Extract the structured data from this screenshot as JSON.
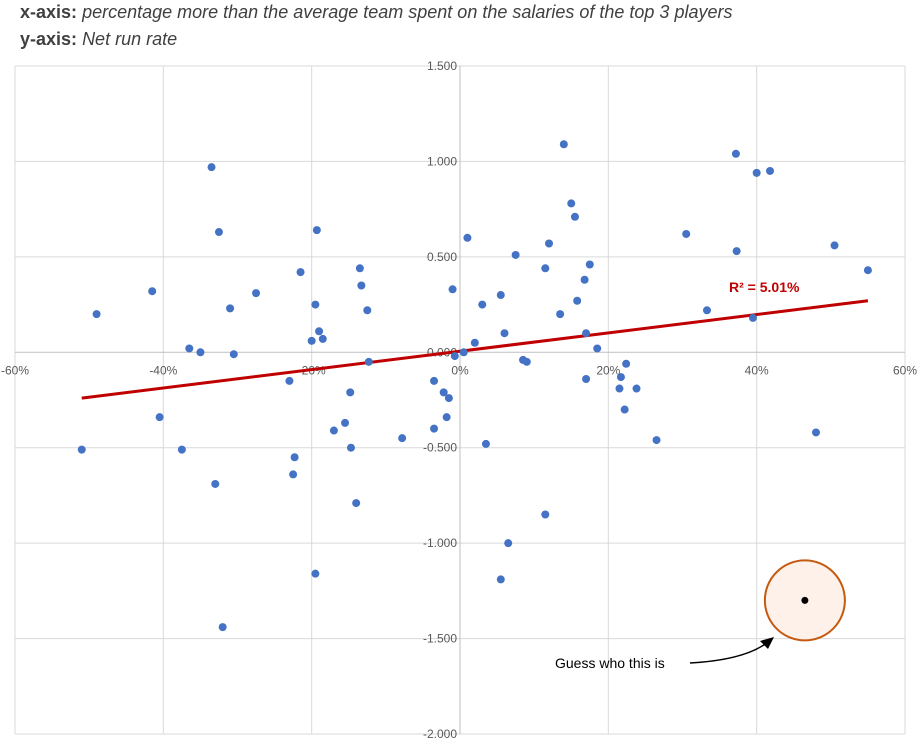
{
  "header": {
    "x_label_key": "x-axis:",
    "x_label_text": "percentage more than the average team spent on the salaries of the top 3 players",
    "y_label_key": "y-axis:",
    "y_label_text": "Net run rate"
  },
  "chart_data": {
    "type": "scatter",
    "title": "",
    "xlabel": "percentage more than the average team spent on the salaries of the top 3 players",
    "ylabel": "Net run rate",
    "xlim": [
      -60,
      60
    ],
    "ylim": [
      -2.0,
      1.5
    ],
    "x_ticks": [
      "-60%",
      "-40%",
      "-20%",
      "0%",
      "20%",
      "40%",
      "60%"
    ],
    "y_ticks": [
      "1.500",
      "1.000",
      "0.500",
      "0.000",
      "-0.500",
      "-1.000",
      "-1.500",
      "-2.000"
    ],
    "x_tick_values": [
      -60,
      -40,
      -20,
      0,
      20,
      40,
      60
    ],
    "y_tick_values": [
      1.5,
      1.0,
      0.5,
      0.0,
      -0.5,
      -1.0,
      -1.5,
      -2.0
    ],
    "grid": true,
    "point_color": "#4472c4",
    "trendline": {
      "x": [
        -51,
        55
      ],
      "y": [
        -0.24,
        0.27
      ],
      "color": "#c00000",
      "label": "R² = 5.01%"
    },
    "highlight": {
      "x": 46.5,
      "y": -1.3,
      "ring_color": "#c55a11",
      "fill_color": "#fdf1e9",
      "label": "Guess who this is"
    },
    "points": [
      [
        -51,
        -0.51
      ],
      [
        -49,
        0.2
      ],
      [
        -41.5,
        0.32
      ],
      [
        -40.5,
        -0.34
      ],
      [
        -37.5,
        -0.51
      ],
      [
        -36.5,
        0.02
      ],
      [
        -35,
        0.0
      ],
      [
        -33.5,
        0.97
      ],
      [
        -33,
        -0.69
      ],
      [
        -32.5,
        0.63
      ],
      [
        -32,
        -1.44
      ],
      [
        -31,
        0.23
      ],
      [
        -30.5,
        -0.01
      ],
      [
        -27.5,
        0.31
      ],
      [
        -23,
        -0.15
      ],
      [
        -22.5,
        -0.64
      ],
      [
        -22.3,
        -0.55
      ],
      [
        -21.5,
        0.42
      ],
      [
        -20,
        0.06
      ],
      [
        -19.5,
        -1.16
      ],
      [
        -19.5,
        0.25
      ],
      [
        -19.3,
        0.64
      ],
      [
        -19,
        0.11
      ],
      [
        -18.5,
        0.07
      ],
      [
        -17,
        -0.41
      ],
      [
        -15.5,
        -0.37
      ],
      [
        -14.8,
        -0.21
      ],
      [
        -14.7,
        -0.5
      ],
      [
        -14,
        -0.79
      ],
      [
        -13.5,
        0.44
      ],
      [
        -13.3,
        0.35
      ],
      [
        -12.5,
        0.22
      ],
      [
        -12.3,
        -0.05
      ],
      [
        -7.8,
        -0.45
      ],
      [
        -1,
        0.33
      ],
      [
        -0.7,
        -0.02
      ],
      [
        -3.5,
        -0.15
      ],
      [
        -3.5,
        -0.4
      ],
      [
        -2.2,
        -0.21
      ],
      [
        -1.8,
        -0.34
      ],
      [
        -1.5,
        -0.24
      ],
      [
        0.5,
        0.0
      ],
      [
        1.0,
        0.6
      ],
      [
        2.0,
        0.05
      ],
      [
        3.0,
        0.25
      ],
      [
        3.5,
        -0.48
      ],
      [
        5.5,
        0.3
      ],
      [
        5.5,
        -1.19
      ],
      [
        6,
        0.1
      ],
      [
        6.5,
        -1.0
      ],
      [
        7.5,
        0.51
      ],
      [
        8.5,
        -0.04
      ],
      [
        9.0,
        -0.05
      ],
      [
        11.5,
        0.44
      ],
      [
        11.5,
        -0.85
      ],
      [
        12,
        0.57
      ],
      [
        13.5,
        0.2
      ],
      [
        14,
        1.09
      ],
      [
        15,
        0.78
      ],
      [
        15.5,
        0.71
      ],
      [
        15.8,
        0.27
      ],
      [
        16.8,
        0.38
      ],
      [
        17,
        0.1
      ],
      [
        17,
        -0.14
      ],
      [
        17.5,
        0.46
      ],
      [
        18.5,
        0.02
      ],
      [
        21.5,
        -0.19
      ],
      [
        21.7,
        -0.13
      ],
      [
        22.2,
        -0.3
      ],
      [
        22.4,
        -0.06
      ],
      [
        23.8,
        -0.19
      ],
      [
        26.5,
        -0.46
      ],
      [
        30.5,
        0.62
      ],
      [
        33.3,
        0.22
      ],
      [
        37.2,
        1.04
      ],
      [
        37.3,
        0.53
      ],
      [
        39.5,
        0.18
      ],
      [
        40,
        0.94
      ],
      [
        41.8,
        0.95
      ],
      [
        48,
        -0.42
      ],
      [
        50.5,
        0.56
      ],
      [
        55,
        0.43
      ]
    ]
  }
}
